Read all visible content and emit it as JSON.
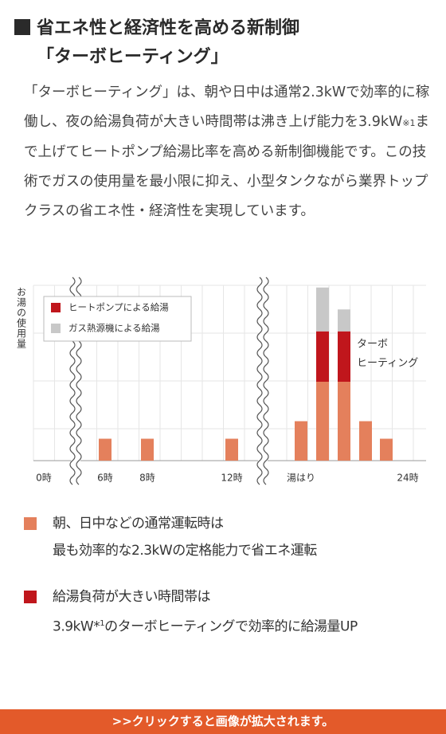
{
  "header": {
    "title_line1": "省エネ性と経済性を高める新制御",
    "title_line2": "「ターボヒーティング」"
  },
  "body": {
    "text_before_note": "「ターボヒーティング」は、朝や日中は通常2.3kWで効率的に稼働し、夜の給湯負荷が大きい時間帯は沸き上げ能力を3.9kW",
    "note_mark": "※1",
    "text_after_note": "まで上げてヒートポンプ給湯比率を高める新制御機能です。この技術でガスの使用量を最小限に抑え、小型タンクながら業界トップクラスの省エネ性・経済性を実現しています。"
  },
  "chart_data": {
    "type": "stacked-bar",
    "y_label": "お湯の使用量",
    "annotation": [
      "ターボ",
      "ヒーティング"
    ],
    "categories": [
      "0時",
      "6時",
      "8時",
      "12時",
      "湯はり",
      null,
      null,
      null,
      null,
      "24時"
    ],
    "series": [
      {
        "color": "#e4805c",
        "values": [
          null,
          1,
          1,
          1,
          1.8,
          3.6,
          3.6,
          1.8,
          1,
          null
        ]
      },
      {
        "name": "ヒートポンプによる給湯",
        "color": "#c0161c",
        "values": [
          null,
          null,
          null,
          null,
          null,
          2.3,
          2.3,
          null,
          null,
          null
        ]
      },
      {
        "name": "ガス熱源機による給湯",
        "color": "#c8c8c8",
        "values": [
          null,
          null,
          null,
          null,
          null,
          2.0,
          1.0,
          null,
          null,
          null
        ]
      }
    ],
    "ylim": [
      0,
      8
    ],
    "grid": true
  },
  "notes": [
    {
      "color": "#e4805c",
      "line1": "朝、日中などの通常運転時は",
      "line2": [
        "最も効率的な2.3kWの定格能力で省エネ運転"
      ]
    },
    {
      "color": "#c0161c",
      "line1": "給湯負荷が大きい時間帯は",
      "line2": [
        "3.9kW*",
        "1",
        "のターボヒーティングで効率的に給湯量UP"
      ]
    }
  ],
  "footer": {
    "link": ">>クリックすると画像が拡大されます。"
  }
}
